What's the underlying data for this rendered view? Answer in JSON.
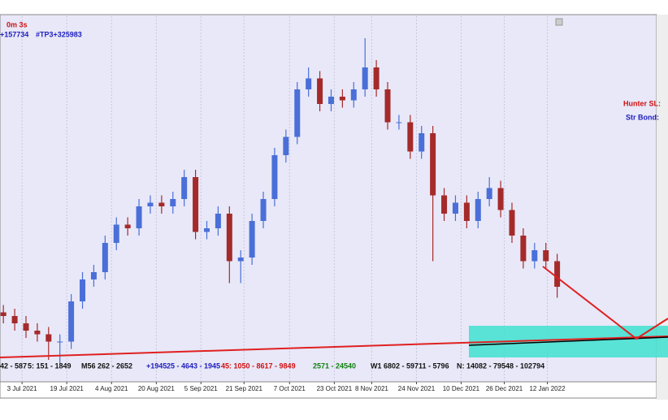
{
  "chart_data": {
    "type": "candlestick",
    "header": [
      "0m 3s",
      "+157734",
      "#TP3+325983"
    ],
    "side_labels": [
      "Hunter SL:",
      "Str Bond:"
    ],
    "footer": [
      "42 - 587",
      "5: 151 - 1849",
      "M56 262 - 2652",
      "+1945",
      "25 - 4643 - 1945",
      "45: 1050 - 8617 - 9849",
      "2571 - 24540",
      "W1 6802 - 59711 - 5796",
      "N: 14082 - 79548 - 102794"
    ],
    "open": [
      19,
      18,
      16,
      14,
      13,
      11,
      11,
      22,
      28,
      30,
      38,
      43,
      42,
      48,
      49,
      48,
      50,
      56,
      41,
      42,
      46,
      33,
      34,
      44,
      50,
      62,
      67,
      80,
      83,
      76,
      78,
      77,
      80,
      86,
      80,
      71,
      71,
      63,
      68,
      51,
      46,
      49,
      44,
      50,
      53,
      47,
      40,
      33,
      36,
      33
    ],
    "high": [
      21,
      20,
      18,
      16,
      15,
      13,
      24,
      30,
      32,
      40,
      45,
      45,
      50,
      51,
      51,
      52,
      58,
      58,
      44,
      48,
      48,
      36,
      46,
      52,
      64,
      69,
      82,
      86,
      85,
      80,
      80,
      82,
      94,
      88,
      82,
      73,
      73,
      70,
      70,
      53,
      51,
      51,
      52,
      56,
      55,
      49,
      42,
      38,
      38,
      35
    ],
    "low": [
      16,
      14,
      12,
      11,
      6,
      5,
      9,
      20,
      26,
      28,
      36,
      40,
      40,
      46,
      46,
      46,
      48,
      39,
      39,
      40,
      27,
      27,
      32,
      42,
      48,
      60,
      65,
      78,
      74,
      74,
      75,
      75,
      78,
      78,
      69,
      69,
      61,
      61,
      33,
      44,
      44,
      42,
      42,
      48,
      45,
      38,
      31,
      31,
      31,
      23
    ],
    "close": [
      18,
      16,
      14,
      13,
      11,
      11,
      22,
      28,
      30,
      38,
      43,
      42,
      48,
      49,
      48,
      50,
      56,
      41,
      42,
      46,
      33,
      34,
      44,
      50,
      62,
      67,
      80,
      83,
      76,
      78,
      77,
      80,
      86,
      80,
      71,
      71,
      63,
      68,
      51,
      46,
      49,
      44,
      50,
      53,
      47,
      40,
      33,
      36,
      33,
      26
    ],
    "up_color": "#4a6fd8",
    "down_color": "#a52a2a",
    "xlim": [
      -0.3,
      57.8
    ],
    "ylim": [
      0,
      100
    ],
    "xticks": [
      {
        "value": 1.65,
        "label": "3 Jul 2021"
      },
      {
        "value": 5.61,
        "label": "19 Jul 2021"
      },
      {
        "value": 9.57,
        "label": "4 Aug 2021"
      },
      {
        "value": 13.53,
        "label": "20 Aug 2021"
      },
      {
        "value": 17.48,
        "label": "5 Sep 2021"
      },
      {
        "value": 21.29,
        "label": "21 Sep 2021"
      },
      {
        "value": 25.32,
        "label": "7 Oct 2021"
      },
      {
        "value": 29.28,
        "label": "23 Oct 2021"
      },
      {
        "value": 32.59,
        "label": "8 Nov 2021"
      },
      {
        "value": 36.55,
        "label": "24 Nov 2021"
      },
      {
        "value": 40.5,
        "label": "10 Dec 2021"
      },
      {
        "value": 44.32,
        "label": "26 Dec 2021"
      },
      {
        "value": 48.13,
        "label": "12 Jan 2022"
      }
    ],
    "grid": true
  }
}
